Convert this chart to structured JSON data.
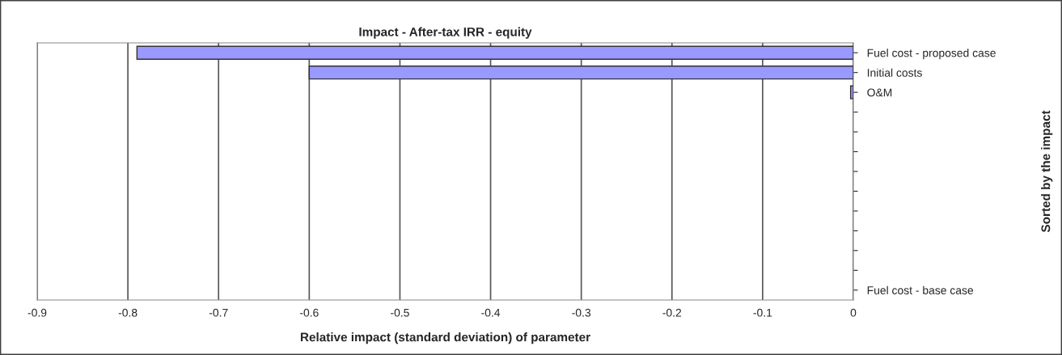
{
  "chart_data": {
    "type": "bar",
    "orientation": "horizontal",
    "title": "Impact - After-tax IRR - equity",
    "xlabel": "Relative impact (standard deviation) of parameter",
    "ylabel": "Sorted by the impact",
    "categories": [
      "Fuel cost - proposed case",
      "Initial costs",
      "O&M",
      null,
      null,
      null,
      null,
      null,
      null,
      null,
      null,
      null,
      "Fuel cost - base case"
    ],
    "values": [
      -0.79,
      -0.6,
      -0.003,
      null,
      null,
      null,
      null,
      null,
      null,
      null,
      null,
      null,
      null
    ],
    "color": "#9999ff",
    "xlim": [
      -0.9,
      0
    ],
    "xticks": [
      -0.9,
      -0.8,
      -0.7,
      -0.6,
      -0.5,
      -0.4,
      -0.3,
      -0.2,
      -0.1,
      0
    ],
    "grid": "x",
    "legend": false
  }
}
